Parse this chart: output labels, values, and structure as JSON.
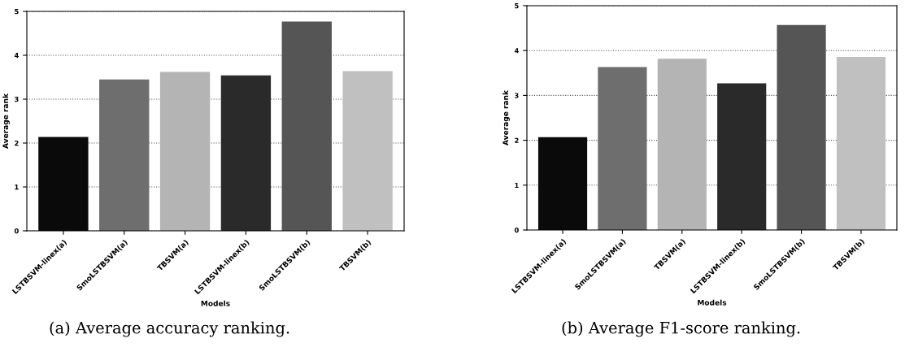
{
  "chart_data": [
    {
      "type": "bar",
      "xlabel": "Models",
      "ylabel": "Average rank",
      "categories": [
        "LSTBSVM-linex(a)",
        "SmoLSTBSVM(a)",
        "TBSVM(a)",
        "LSTBSVM-linex(b)",
        "SmoLSTBSVM(b)",
        "TBSVM(b)"
      ],
      "values": [
        2.14,
        3.45,
        3.62,
        3.54,
        4.77,
        3.64
      ],
      "colors": [
        "#0a0a0a",
        "#6e6e6e",
        "#b4b4b4",
        "#2a2a2a",
        "#555555",
        "#c0c0c0"
      ],
      "ylim": [
        0,
        5
      ],
      "yticks": [
        0,
        1,
        2,
        3,
        4,
        5
      ],
      "grid": "y",
      "annotations": [
        "(a) Average accuracy ranking."
      ]
    },
    {
      "type": "bar",
      "xlabel": "Models",
      "ylabel": "Average rank",
      "categories": [
        "LSTBSVM-linex(a)",
        "SmoLSTBSVM(a)",
        "TBSVM(a)",
        "LSTBSVM-linex(b)",
        "SmoLSTBSVM(b)",
        "TBSVM(b)"
      ],
      "values": [
        2.07,
        3.63,
        3.82,
        3.27,
        4.57,
        3.86
      ],
      "colors": [
        "#0a0a0a",
        "#6e6e6e",
        "#b4b4b4",
        "#2a2a2a",
        "#555555",
        "#c0c0c0"
      ],
      "ylim": [
        0,
        5
      ],
      "yticks": [
        0,
        1,
        2,
        3,
        4,
        5
      ],
      "grid": "y",
      "annotations": [
        "(b) Average F1-score ranking."
      ]
    }
  ]
}
